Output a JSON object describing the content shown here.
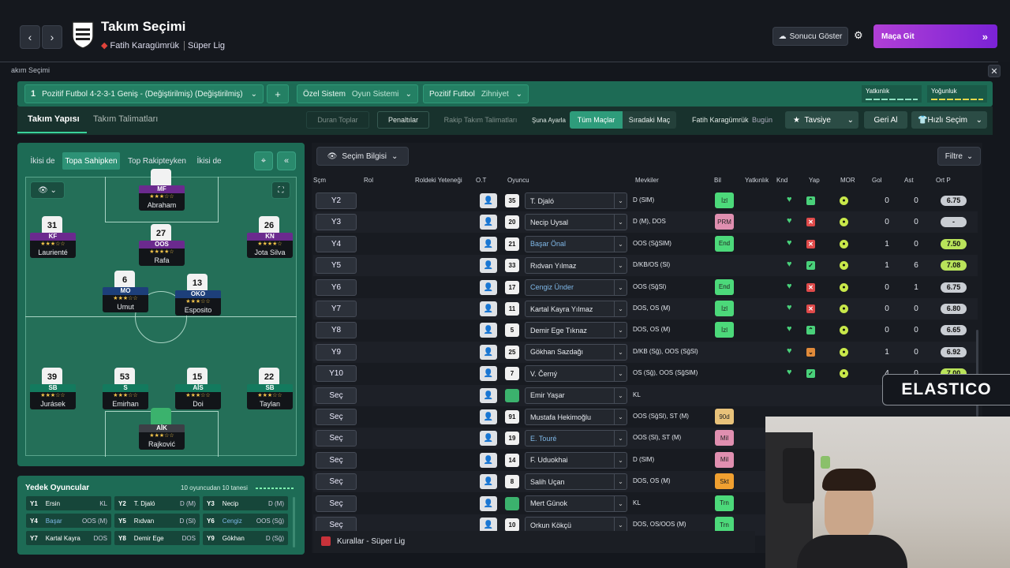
{
  "header": {
    "title": "Takım Seçimi",
    "club": "Fatih Karagümrük",
    "league": "Süper Lig",
    "show_result": "Sonucu Göster",
    "go_match": "Maça Git"
  },
  "screen_label": "akım Seçimi",
  "tactic": {
    "name": "Pozitif Futbol 4-2-3-1 Geniş - (Değiştirilmiş) (Değiştirilmiş)",
    "number": "1",
    "system_label": "Özel Sistem",
    "system_value": "Oyun Sistemi",
    "mentality_label": "Pozitif Futbol",
    "mentality_value": "Zihniyet",
    "familiarity": "Yatkınlık",
    "intensity": "Yoğunluk"
  },
  "tabs": {
    "structure": "Takım Yapısı",
    "instructions": "Takım Talimatları"
  },
  "toolbar": {
    "set_pieces": "Duran Toplar",
    "penalties": "Penaltılar",
    "opp_instr": "Rakip Takım Talimatları",
    "apply_label": "Şuna Ayarla",
    "all_matches": "Tüm Maçlar",
    "next_match": "Sıradaki Maç",
    "club": "Fatih Karagümrük",
    "today": "Bugün",
    "advice": "Tavsiye",
    "undo": "Geri Al",
    "quick_pick": "Hızlı Seçim"
  },
  "mode_tabs": [
    "İkisi de",
    "Topa Sahipken",
    "Top Rakipteyken",
    "İkisi de"
  ],
  "players": [
    {
      "num": "",
      "pos": "MF",
      "name": "Abraham",
      "stars": "★★★☆☆",
      "cls": "fmf"
    },
    {
      "num": "31",
      "pos": "KF",
      "name": "Laurienté",
      "stars": "★★★☆☆",
      "cls": "fmf"
    },
    {
      "num": "27",
      "pos": "OOS",
      "name": "Rafa",
      "stars": "★★★★☆",
      "cls": "fmf"
    },
    {
      "num": "26",
      "pos": "KN",
      "name": "Jota Silva",
      "stars": "★★★★☆",
      "cls": "fmf"
    },
    {
      "num": "6",
      "pos": "MO",
      "name": "Umut",
      "stars": "★★★☆☆",
      "cls": "fdm"
    },
    {
      "num": "13",
      "pos": "OKO",
      "name": "Esposito",
      "stars": "★★★☆☆",
      "cls": "fdm"
    },
    {
      "num": "39",
      "pos": "SB",
      "name": "Jurásek",
      "stars": "★★★☆☆",
      "cls": "fdf"
    },
    {
      "num": "53",
      "pos": "S",
      "name": "Emirhan",
      "stars": "★★★☆☆",
      "cls": "fdf"
    },
    {
      "num": "15",
      "pos": "AİS",
      "name": "Doi",
      "stars": "★★★☆☆",
      "cls": "fdf"
    },
    {
      "num": "22",
      "pos": "SB",
      "name": "Taylan",
      "stars": "★★★☆☆",
      "cls": "fdf"
    },
    {
      "num": "",
      "pos": "AİK",
      "name": "Rajković",
      "stars": "★★★☆☆",
      "cls": "fgk"
    }
  ],
  "subs": {
    "title": "Yedek Oyuncular",
    "count": "10 oyuncudan 10 tanesi",
    "items": [
      {
        "slot": "Y1",
        "name": "Ersin",
        "pos": "KL"
      },
      {
        "slot": "Y2",
        "name": "T. Djaló",
        "pos": "D (M)"
      },
      {
        "slot": "Y3",
        "name": "Necip",
        "pos": "D (M)"
      },
      {
        "slot": "Y4",
        "name": "Başar",
        "pos": "OOS (M)"
      },
      {
        "slot": "Y5",
        "name": "Rıdvan",
        "pos": "D (Sl)"
      },
      {
        "slot": "Y6",
        "name": "Cengiz",
        "pos": "OOS (Sğ)"
      },
      {
        "slot": "Y7",
        "name": "Kartal Kayra",
        "pos": "DOS"
      },
      {
        "slot": "Y8",
        "name": "Demir Ege",
        "pos": "DOS"
      },
      {
        "slot": "Y9",
        "name": "Gökhan",
        "pos": "D (Sğ)"
      }
    ]
  },
  "panel": {
    "info": "Seçim Bilgisi",
    "filter": "Filtre",
    "footer": "Kurallar - Süper Lig"
  },
  "columns": [
    "Sçm",
    "Rol",
    "Roldeki Yeteneği",
    "O.T",
    "Oyuncu",
    "Mevkiler",
    "Bil",
    "Yatkınlık",
    "Knd",
    "Yap",
    "MOR",
    "Gol",
    "Ast",
    "Ort P"
  ],
  "rows": [
    {
      "slot": "Y2",
      "num": "35",
      "name": "T. Djaló",
      "pos": "D (SlM)",
      "bil": "İzl",
      "bilc": "#4cd97a",
      "yap": "up",
      "gol": "0",
      "ast": "0",
      "rat": "6.75",
      "ratc": "#c9cdd3"
    },
    {
      "slot": "Y3",
      "num": "20",
      "name": "Necip Uysal",
      "pos": "D (M), DOS",
      "bil": "PRM",
      "bilc": "#e08fb0",
      "yap": "x",
      "gol": "0",
      "ast": "0",
      "rat": "-",
      "ratc": "#c9cdd3"
    },
    {
      "slot": "Y4",
      "num": "21",
      "name": "Başar Önal",
      "pos": "OOS (SğSlM)",
      "bil": "End",
      "bilc": "#4cd97a",
      "yap": "x",
      "gol": "1",
      "ast": "0",
      "rat": "7.50",
      "ratc": "#b9e35a",
      "hl": true
    },
    {
      "slot": "Y5",
      "num": "33",
      "name": "Rıdvan Yılmaz",
      "pos": "D/KB/OS (Sl)",
      "bil": "",
      "bilc": "",
      "yap": "ok",
      "gol": "1",
      "ast": "6",
      "rat": "7.08",
      "ratc": "#b9e35a"
    },
    {
      "slot": "Y6",
      "num": "17",
      "name": "Cengiz Ünder",
      "pos": "OOS (SğSl)",
      "bil": "End",
      "bilc": "#4cd97a",
      "yap": "x",
      "gol": "0",
      "ast": "1",
      "rat": "6.75",
      "ratc": "#c9cdd3",
      "hl": true
    },
    {
      "slot": "Y7",
      "num": "11",
      "name": "Kartal Kayra Yılmaz",
      "pos": "DOS, OS (M)",
      "bil": "İzl",
      "bilc": "#4cd97a",
      "yap": "x",
      "gol": "0",
      "ast": "0",
      "rat": "6.80",
      "ratc": "#c9cdd3"
    },
    {
      "slot": "Y8",
      "num": "5",
      "name": "Demir Ege Tıknaz",
      "pos": "DOS, OS (M)",
      "bil": "İzl",
      "bilc": "#4cd97a",
      "yap": "up",
      "gol": "0",
      "ast": "0",
      "rat": "6.65",
      "ratc": "#c9cdd3"
    },
    {
      "slot": "Y9",
      "num": "25",
      "name": "Gökhan Sazdağı",
      "pos": "D/KB (Sğ), OOS (SğSl)",
      "bil": "",
      "bilc": "",
      "yap": "o",
      "gol": "1",
      "ast": "0",
      "rat": "6.92",
      "ratc": "#c9cdd3"
    },
    {
      "slot": "Y10",
      "num": "7",
      "name": "V. Černý",
      "pos": "OS (Sğ), OOS (SğSlM)",
      "bil": "",
      "bilc": "",
      "yap": "ok",
      "gol": "4",
      "ast": "0",
      "rat": "7.00",
      "ratc": "#b9e35a"
    },
    {
      "slot": "Seç",
      "num": "",
      "name": "Emir Yaşar",
      "pos": "KL",
      "bil": "",
      "bilc": "",
      "yap": "x",
      "gol": "",
      "ast": "",
      "rat": "",
      "ratc": "",
      "gk": true
    },
    {
      "slot": "Seç",
      "num": "91",
      "name": "Mustafa Hekimoğlu",
      "pos": "OOS (SğSl), ST (M)",
      "bil": "90d",
      "bilc": "#e8c27a",
      "yap": "",
      "gol": "",
      "ast": "",
      "rat": "",
      "ratc": ""
    },
    {
      "slot": "Seç",
      "num": "19",
      "name": "E. Touré",
      "pos": "OOS (Sl), ST (M)",
      "bil": "Mil",
      "bilc": "#e08fb0",
      "yap": "",
      "gol": "",
      "ast": "",
      "rat": "",
      "ratc": "",
      "hl": true
    },
    {
      "slot": "Seç",
      "num": "14",
      "name": "F. Uduokhai",
      "pos": "D (SlM)",
      "bil": "Mil",
      "bilc": "#e08fb0",
      "yap": "",
      "gol": "",
      "ast": "",
      "rat": "",
      "ratc": ""
    },
    {
      "slot": "Seç",
      "num": "8",
      "name": "Salih Uçan",
      "pos": "DOS, OS (M)",
      "bil": "Skt",
      "bilc": "#f0a030",
      "yap": "",
      "gol": "",
      "ast": "",
      "rat": "",
      "ratc": ""
    },
    {
      "slot": "Seç",
      "num": "",
      "name": "Mert Günok",
      "pos": "KL",
      "bil": "Trn",
      "bilc": "#4cd97a",
      "yap": "",
      "gol": "",
      "ast": "",
      "rat": "",
      "ratc": "",
      "gk": true
    },
    {
      "slot": "Seç",
      "num": "10",
      "name": "Orkun Kökçü",
      "pos": "DOS, OS/OOS (M)",
      "bil": "Trn",
      "bilc": "#4cd97a",
      "yap": "",
      "gol": "",
      "ast": "",
      "rat": "",
      "ratc": ""
    }
  ],
  "watermark": "ELASTICO"
}
